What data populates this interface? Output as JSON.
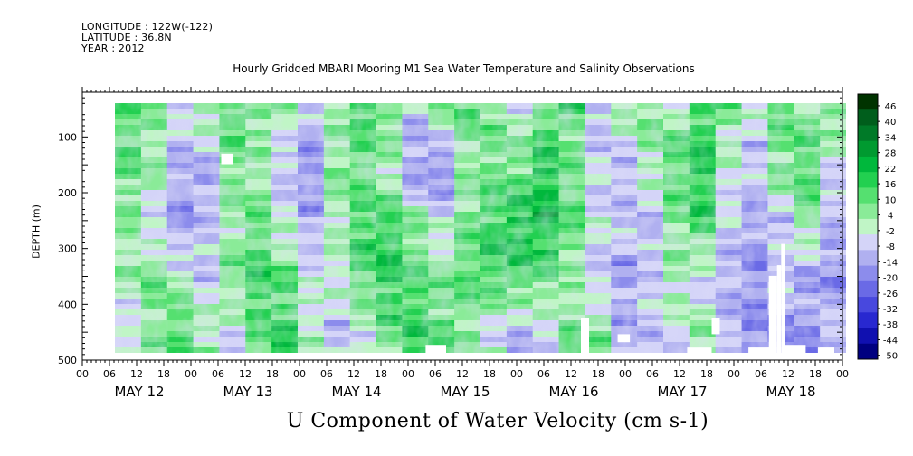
{
  "header": {
    "longitude": "LONGITUDE : 122W(-122)",
    "latitude": "LATITUDE : 36.8N",
    "year": "YEAR : 2012"
  },
  "chart_data": {
    "type": "heatmap",
    "title": "Hourly Gridded MBARI Mooring M1 Sea Water Temperature and Salinity Observations",
    "xlabel": "U Component of Water Velocity (cm s-1)",
    "ylabel": "DEPTH (m)",
    "y_ticks": [
      100,
      200,
      300,
      400,
      500
    ],
    "ylim": [
      500,
      20
    ],
    "x_hour_ticks": [
      "00",
      "06",
      "12",
      "18",
      "00",
      "06",
      "12",
      "18",
      "00",
      "06",
      "12",
      "18",
      "00",
      "06",
      "12",
      "18",
      "00",
      "06",
      "12",
      "18",
      "00",
      "06",
      "12",
      "18",
      "00",
      "06",
      "12",
      "18",
      "00"
    ],
    "x_day_labels": [
      "MAY 12",
      "MAY 13",
      "MAY 14",
      "MAY 15",
      "MAY 16",
      "MAY 17",
      "MAY 18"
    ],
    "colorbar": {
      "labels": [
        "46",
        "40",
        "34",
        "28",
        "22",
        "16",
        "10",
        "4",
        "-2",
        "-8",
        "-14",
        "-20",
        "-26",
        "-32",
        "-38",
        "-44",
        "-50"
      ],
      "range": [
        -50,
        50
      ],
      "colors": [
        "#003300",
        "#005e1c",
        "#007a28",
        "#009a30",
        "#00b83c",
        "#22d050",
        "#55e070",
        "#8aeb98",
        "#c0f5c6",
        "#d4d4f8",
        "#b0b0f0",
        "#8c8cec",
        "#6a6ae6",
        "#4848de",
        "#2828d0",
        "#1010b0",
        "#000080"
      ]
    },
    "depth_profile": [
      {
        "depth": 25,
        "bands": [
          12,
          8,
          -4,
          6,
          14,
          10,
          2,
          -8,
          4,
          16,
          10,
          -6,
          8,
          14,
          6,
          -2,
          10,
          12,
          -10,
          4,
          8,
          2,
          14,
          10,
          -4,
          8,
          6,
          12
        ]
      },
      {
        "depth": 150,
        "bands": [
          10,
          4,
          -12,
          -14,
          8,
          4,
          -10,
          -18,
          6,
          10,
          2,
          -16,
          -20,
          4,
          10,
          12,
          20,
          8,
          -6,
          -12,
          2,
          14,
          18,
          -4,
          -8,
          10,
          14,
          -6
        ]
      },
      {
        "depth": 250,
        "bands": [
          6,
          -6,
          -16,
          -10,
          4,
          10,
          -2,
          -12,
          2,
          14,
          16,
          8,
          -4,
          10,
          16,
          20,
          22,
          12,
          -4,
          -8,
          -12,
          8,
          16,
          -8,
          -14,
          -10,
          6,
          -12
        ]
      },
      {
        "depth": 350,
        "bands": [
          4,
          10,
          2,
          -8,
          8,
          16,
          12,
          -4,
          0,
          14,
          18,
          14,
          8,
          12,
          16,
          14,
          10,
          2,
          -10,
          -14,
          -6,
          4,
          -8,
          -12,
          -16,
          -6,
          -14,
          -18
        ]
      },
      {
        "depth": 450,
        "bands": [
          -6,
          6,
          14,
          4,
          -4,
          12,
          16,
          2,
          -8,
          -2,
          10,
          16,
          12,
          6,
          -4,
          -12,
          -6,
          10,
          8,
          -12,
          -10,
          -4,
          6,
          -10,
          -18,
          -20,
          -16,
          -8
        ]
      }
    ],
    "missing_regions": [
      {
        "x0": 34,
        "x1": 37,
        "y0": 115,
        "y1": 135
      },
      {
        "x0": 84,
        "x1": 89,
        "y0": 475,
        "y1": 490
      },
      {
        "x0": 122,
        "x1": 124,
        "y0": 425,
        "y1": 490
      },
      {
        "x0": 131,
        "x1": 134,
        "y0": 455,
        "y1": 470
      },
      {
        "x0": 148,
        "x1": 154,
        "y0": 480,
        "y1": 490
      },
      {
        "x0": 163,
        "x1": 169,
        "y0": 480,
        "y1": 490
      },
      {
        "x0": 154,
        "x1": 156,
        "y0": 425,
        "y1": 455
      },
      {
        "x0": 168,
        "x1": 170,
        "y0": 345,
        "y1": 490
      },
      {
        "x0": 170,
        "x1": 171,
        "y0": 325,
        "y1": 490
      },
      {
        "x0": 171,
        "x1": 172,
        "y0": 285,
        "y1": 490
      },
      {
        "x0": 172,
        "x1": 177,
        "y0": 475,
        "y1": 490
      },
      {
        "x0": 180,
        "x1": 184,
        "y0": 480,
        "y1": 490
      }
    ]
  }
}
